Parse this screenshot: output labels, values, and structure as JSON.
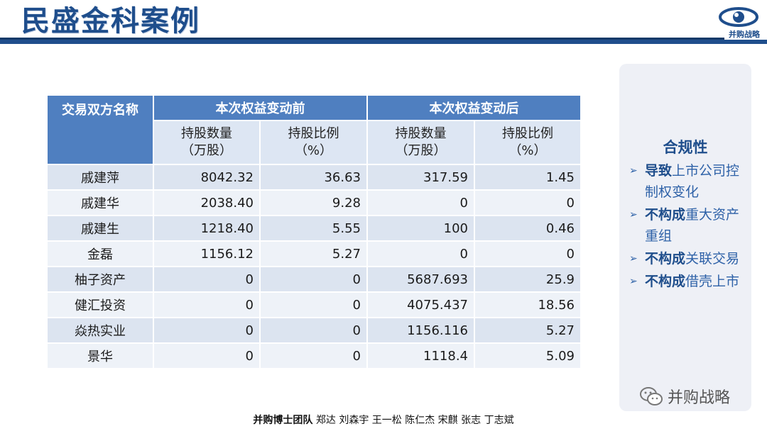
{
  "slide": {
    "title": "民盛金科案例",
    "logo_text": "并购战略"
  },
  "table": {
    "corner_header": "交易双方名称",
    "group_headers": [
      "本次权益变动前",
      "本次权益变动后"
    ],
    "sub_headers": [
      {
        "line1": "持股数量",
        "line2": "（万股）"
      },
      {
        "line1": "持股比例",
        "line2": "（%）"
      },
      {
        "line1": "持股数量",
        "line2": "（万股）"
      },
      {
        "line1": "持股比例",
        "line2": "（%）"
      }
    ],
    "rows": [
      {
        "name": "戚建萍",
        "before_qty": "8042.32",
        "before_pct": "36.63",
        "after_qty": "317.59",
        "after_pct": "1.45"
      },
      {
        "name": "戚建华",
        "before_qty": "2038.40",
        "before_pct": "9.28",
        "after_qty": "0",
        "after_pct": "0"
      },
      {
        "name": "戚建生",
        "before_qty": "1218.40",
        "before_pct": "5.55",
        "after_qty": "100",
        "after_pct": "0.46"
      },
      {
        "name": "金磊",
        "before_qty": "1156.12",
        "before_pct": "5.27",
        "after_qty": "0",
        "after_pct": "0"
      },
      {
        "name": "柚子资产",
        "before_qty": "0",
        "before_pct": "0",
        "after_qty": "5687.693",
        "after_pct": "25.9"
      },
      {
        "name": "健汇投资",
        "before_qty": "0",
        "before_pct": "0",
        "after_qty": "4075.437",
        "after_pct": "18.56"
      },
      {
        "name": "焱热实业",
        "before_qty": "0",
        "before_pct": "0",
        "after_qty": "1156.116",
        "after_pct": "5.27"
      },
      {
        "name": "景华",
        "before_qty": "0",
        "before_pct": "0",
        "after_qty": "1118.4",
        "after_pct": "5.09"
      }
    ]
  },
  "compliance": {
    "title": "合规性",
    "items": [
      {
        "bold": "导致",
        "rest": "上市公司控制权变化"
      },
      {
        "bold": "不构成",
        "rest": "重大资产重组"
      },
      {
        "bold": "不构成",
        "rest": "关联交易"
      },
      {
        "bold": "不构成",
        "rest": "借壳上市"
      }
    ]
  },
  "watermark": {
    "text": "并购战略"
  },
  "footer": {
    "team": "并购博士团队",
    "members": " 郑达 刘森宇 王一松 陈仁杰 宋麒 张志 丁志斌"
  },
  "colors": {
    "brand": "#1f4e8c",
    "header": "#4f7fc0",
    "accent_text": "#2f62a8"
  }
}
